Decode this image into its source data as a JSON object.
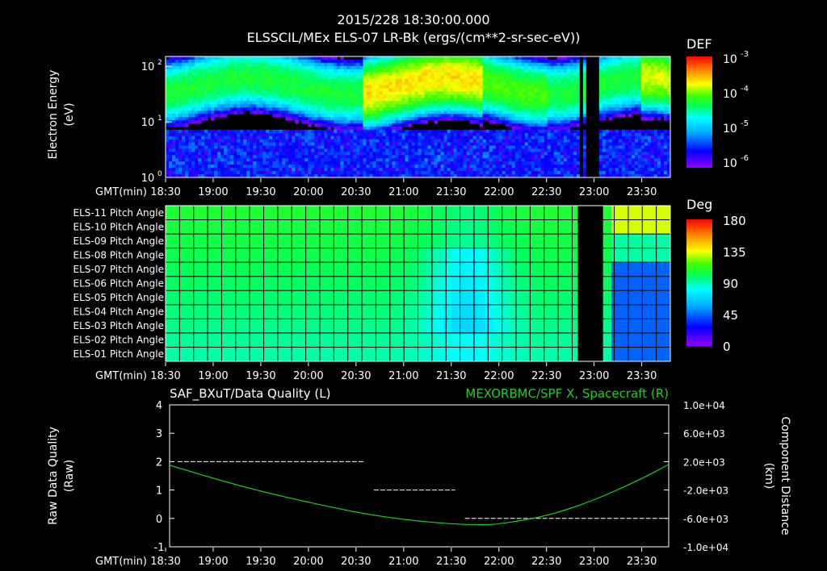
{
  "header": {
    "datetime": "2015/228 18:30:00.000",
    "title": "ELSSCIL/MEx ELS-07 LR-Bk  (ergs/(cm**2-sr-sec-eV))"
  },
  "colors": {
    "background": "#000000",
    "text": "#ffffff",
    "grid": "#000000",
    "green_trace": "#22cc22",
    "colormap": [
      "#8a2be2",
      "#0000ff",
      "#00bfff",
      "#00ffff",
      "#00ff80",
      "#00ff00",
      "#80ff00",
      "#ffff00",
      "#ff8000",
      "#ff0000"
    ]
  },
  "chart_data": [
    {
      "id": "energy-spectrogram",
      "type": "heatmap",
      "title": "ELSSCIL/MEx ELS-07 LR-Bk  (ergs/(cm**2-sr-sec-eV))",
      "ylabel": "Electron Energy",
      "yunit": "(eV)",
      "yscale": "log",
      "ylim": [
        1,
        150
      ],
      "yticks": [
        {
          "label": "10",
          "exp": "0",
          "value": 1
        },
        {
          "label": "10",
          "exp": "1",
          "value": 10
        },
        {
          "label": "10",
          "exp": "2",
          "value": 100
        }
      ],
      "xlabel": "GMT(min)",
      "xticks": [
        "18:30",
        "19:00",
        "19:30",
        "20:00",
        "20:30",
        "21:00",
        "21:30",
        "22:00",
        "22:30",
        "23:00",
        "23:30"
      ],
      "colorbar": {
        "label": "DEF",
        "scale": "log",
        "ticks": [
          {
            "label": "10",
            "exp": "-3"
          },
          {
            "label": "10",
            "exp": "-4"
          },
          {
            "label": "10",
            "exp": "-5"
          },
          {
            "label": "10",
            "exp": "-6"
          }
        ]
      },
      "data_gaps_time": [
        "22:52",
        "22:57",
        "23:00",
        "23:02"
      ],
      "peak_band_ev": [
        30,
        100
      ]
    },
    {
      "id": "pitch-angle",
      "type": "heatmap",
      "ylabels": [
        "ELS-11 Pitch Angle",
        "ELS-10 Pitch Angle",
        "ELS-09 Pitch Angle",
        "ELS-08 Pitch Angle",
        "ELS-07 Pitch Angle",
        "ELS-06 Pitch Angle",
        "ELS-05 Pitch Angle",
        "ELS-04 Pitch Angle",
        "ELS-03 Pitch Angle",
        "ELS-02 Pitch Angle",
        "ELS-01 Pitch Angle"
      ],
      "xlabel": "GMT(min)",
      "xticks": [
        "18:30",
        "19:00",
        "19:30",
        "20:00",
        "20:30",
        "21:00",
        "21:30",
        "22:00",
        "22:30",
        "23:00",
        "23:30"
      ],
      "colorbar": {
        "label": "Deg",
        "ticks": [
          "180",
          "135",
          "90",
          "45",
          "0"
        ],
        "range": [
          0,
          180
        ]
      },
      "grid": true
    },
    {
      "id": "data-quality",
      "type": "line",
      "title_left": "SAF_BXuT/Data Quality (L)",
      "title_right": "MEXORBMC/SPF X, Spacecraft (R)",
      "ylabel_left": "Raw Data Quality",
      "yunit_left": "(Raw)",
      "ylim_left": [
        -1,
        4
      ],
      "yticks_left": [
        "4",
        "3",
        "2",
        "1",
        "0",
        "-1"
      ],
      "ylabel_right": "Component Distance",
      "yunit_right": "(km)",
      "ylim_right": [
        -10000,
        10000
      ],
      "yticks_right": [
        "1.0e+04",
        "6.0e+03",
        "2.0e+03",
        "-2.0e+03",
        "-6.0e+03",
        "-1.0e+04"
      ],
      "xlabel": "GMT(min)",
      "xticks": [
        "18:30",
        "19:00",
        "19:30",
        "20:00",
        "20:30",
        "21:00",
        "21:30",
        "22:00",
        "22:30",
        "23:00",
        "23:30"
      ],
      "series": [
        {
          "name": "Data Quality",
          "axis": "left",
          "style": "dashed",
          "color": "#ffffff",
          "x": [
            "18:30",
            "20:35",
            "20:35",
            "21:33",
            "21:33",
            "23:48"
          ],
          "y": [
            2,
            2,
            1,
            1,
            0,
            0
          ]
        },
        {
          "name": "SPF X",
          "axis": "right",
          "style": "solid",
          "color": "#22cc22",
          "x": [
            "18:30",
            "19:00",
            "19:30",
            "20:00",
            "20:30",
            "21:00",
            "21:30",
            "21:50",
            "22:00",
            "22:30",
            "23:00",
            "23:30",
            "23:48"
          ],
          "y": [
            1500,
            -500,
            -2300,
            -3800,
            -5200,
            -6200,
            -6800,
            -6900,
            -6800,
            -5700,
            -3500,
            -500,
            1600
          ]
        }
      ]
    }
  ]
}
